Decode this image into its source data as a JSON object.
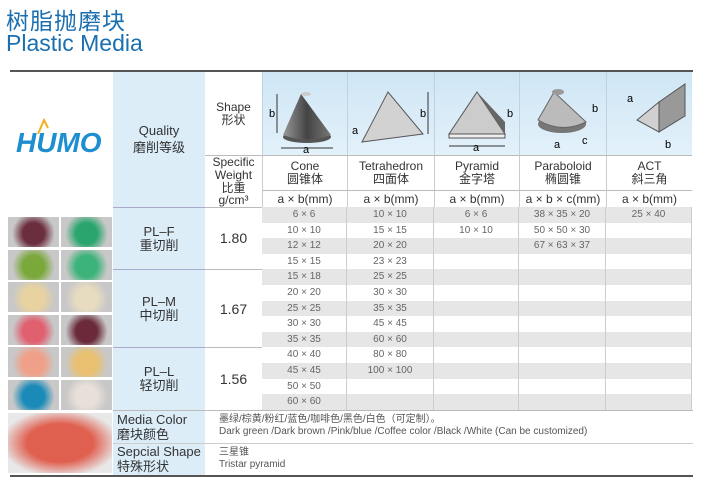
{
  "title": {
    "cn": "树脂抛磨块",
    "en": "Plastic Media"
  },
  "logo": "HUMO",
  "header": {
    "quality_en": "Quality",
    "quality_cn": "磨削等级",
    "shape_en": "Shape",
    "shape_cn": "形状",
    "sw_en1": "Specific",
    "sw_en2": "Weight",
    "sw_cn": "比重",
    "sw_unit": "g/cm³"
  },
  "shapes": [
    {
      "en": "Cone",
      "cn": "圆锥体",
      "unit": "a × b(mm)",
      "icon": "cone-icon"
    },
    {
      "en": "Tetrahedron",
      "cn": "四面体",
      "unit": "a × b(mm)",
      "icon": "tetrahedron-icon"
    },
    {
      "en": "Pyramid",
      "cn": "金字塔",
      "unit": "a × b(mm)",
      "icon": "pyramid-icon"
    },
    {
      "en": "Paraboloid",
      "cn": "椭圆锥",
      "unit": "a × b × c(mm)",
      "icon": "paraboloid-icon"
    },
    {
      "en": "ACT",
      "cn": "斜三角",
      "unit": "a × b(mm)",
      "icon": "act-icon"
    }
  ],
  "grades": [
    {
      "name": "PL–F",
      "cn": "重切削",
      "sw": "1.80"
    },
    {
      "name": "PL–M",
      "cn": "中切削",
      "sw": "1.67"
    },
    {
      "name": "PL–L",
      "cn": "轻切削",
      "sw": "1.56"
    }
  ],
  "rows": [
    [
      "6 × 6",
      "10 × 10",
      "6 × 6",
      "38 × 35 × 20",
      "25 × 40"
    ],
    [
      "10 × 10",
      "15 × 15",
      "10 × 10",
      "50 × 50 × 30",
      ""
    ],
    [
      "12 × 12",
      "20 × 20",
      "",
      "67 × 63 × 37",
      ""
    ],
    [
      "15 × 15",
      "23 × 23",
      "",
      "",
      ""
    ],
    [
      "15 × 18",
      "25 × 25",
      "",
      "",
      ""
    ],
    [
      "20 × 20",
      "30 × 30",
      "",
      "",
      ""
    ],
    [
      "25 × 25",
      "35 × 35",
      "",
      "",
      ""
    ],
    [
      "30 × 30",
      "45 × 45",
      "",
      "",
      ""
    ],
    [
      "35 × 35",
      "60 × 60",
      "",
      "",
      ""
    ],
    [
      "40 × 40",
      "80 × 80",
      "",
      "",
      ""
    ],
    [
      "45 × 45",
      "100 × 100",
      "",
      "",
      ""
    ],
    [
      "50 × 50",
      "",
      "",
      "",
      ""
    ],
    [
      "60 × 60",
      "",
      "",
      "",
      ""
    ]
  ],
  "media_color": {
    "label_en": "Media Color",
    "label_cn": "磨块颜色",
    "text_cn": "墨绿/棕黄/粉红/蓝色/咖啡色/黑色/白色（可定制）。",
    "text_en": "Dark green /Dark brown /Pink/blue /Coffee color /Black /White (Can be customized)"
  },
  "special_shape": {
    "label_en": "Sepcial Shape",
    "label_cn": "特殊形状",
    "text_cn": "三星锥",
    "text_en": "Tristar pyramid"
  },
  "colors": {
    "title": "#1a6fb0",
    "header_blue": "#dcedf8",
    "row_gray": "#e6e6e6"
  },
  "tiles": [
    "#6b2e3e",
    "#2aa56e",
    "#7aa83a",
    "#3cb37a",
    "#e8d2a0",
    "#e8dcc0",
    "#e06070",
    "#6a2a3a",
    "#f0a088",
    "#e8c070",
    "#1a8ab8",
    "#e8e0d8"
  ],
  "special_tile": "#e06050"
}
